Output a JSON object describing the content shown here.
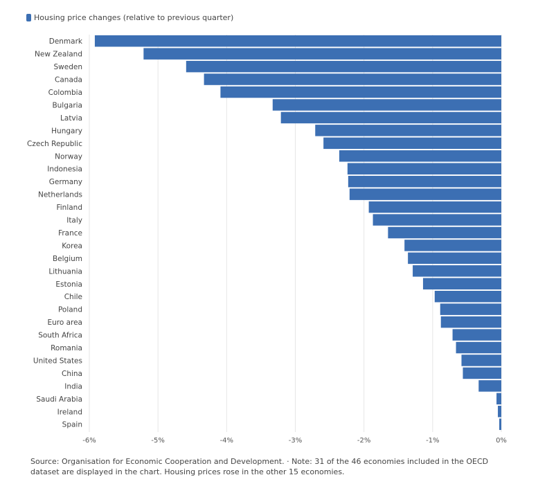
{
  "legend": {
    "label": "Housing price changes (relative to previous quarter)"
  },
  "colors": {
    "bar": "#3c6fb3",
    "grid": "#e6e6e6",
    "text": "#444444",
    "axis": "#555555"
  },
  "chart_data": {
    "type": "bar",
    "orientation": "horizontal",
    "title": "",
    "xlabel": "",
    "ylabel": "",
    "series": [
      {
        "name": "Housing price changes (relative to previous quarter)",
        "values": [
          -5.92,
          -5.21,
          -4.59,
          -4.33,
          -4.09,
          -3.33,
          -3.21,
          -2.71,
          -2.59,
          -2.36,
          -2.24,
          -2.23,
          -2.21,
          -1.93,
          -1.87,
          -1.65,
          -1.41,
          -1.36,
          -1.29,
          -1.14,
          -0.97,
          -0.89,
          -0.88,
          -0.71,
          -0.66,
          -0.58,
          -0.56,
          -0.33,
          -0.07,
          -0.05,
          -0.03
        ]
      }
    ],
    "categories": [
      "Denmark",
      "New Zealand",
      "Sweden",
      "Canada",
      "Colombia",
      "Bulgaria",
      "Latvia",
      "Hungary",
      "Czech Republic",
      "Norway",
      "Indonesia",
      "Germany",
      "Netherlands",
      "Finland",
      "Italy",
      "France",
      "Korea",
      "Belgium",
      "Lithuania",
      "Estonia",
      "Chile",
      "Poland",
      "Euro area",
      "South Africa",
      "Romania",
      "United States",
      "China",
      "India",
      "Saudi Arabia",
      "Ireland",
      "Spain"
    ],
    "xlim": [
      -6,
      0
    ],
    "xticks": [
      -6,
      -5,
      -4,
      -3,
      -2,
      -1,
      0
    ],
    "xtick_labels": [
      "-6%",
      "-5%",
      "-4%",
      "-3%",
      "-2%",
      "-1%",
      "0%"
    ],
    "grid": true,
    "legend_position": "top-left"
  },
  "footnote": {
    "line1": "Source: Organisation for Economic Cooperation and Development. · Note: 31 of the 46 economies included in the OECD",
    "line2": "dataset are displayed in the chart. Housing prices rose in the other 15 economies."
  }
}
